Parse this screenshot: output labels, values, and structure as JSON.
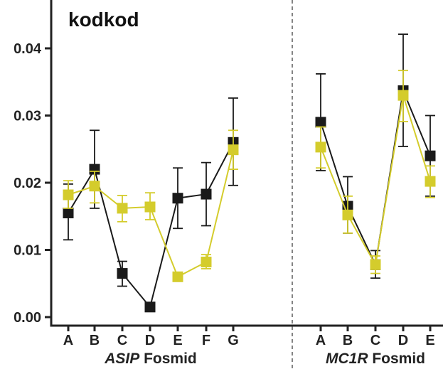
{
  "chart_data": {
    "type": "line",
    "title": "kodkod",
    "ylim": [
      0,
      0.045
    ],
    "yticks": [
      "0.00",
      "0.01",
      "0.02",
      "0.03",
      "0.04"
    ],
    "yticks_values": [
      0,
      0.01,
      0.02,
      0.03,
      0.04
    ],
    "grid": false,
    "legend": "none",
    "colors": {
      "series_dark": "#1a1a1a",
      "series_yellow": "#d4cc2c"
    },
    "panels": [
      {
        "gene": "ASIP",
        "suffix": " Fosmid",
        "categories": [
          "A",
          "B",
          "C",
          "D",
          "E",
          "F",
          "G"
        ],
        "series": [
          {
            "color_key": "series_dark",
            "values": [
              0.0155,
              0.022,
              0.0065,
              0.0015,
              0.0177,
              0.0183,
              0.026
            ],
            "err_low": [
              0.0115,
              0.0162,
              0.0046,
              0.0015,
              0.0132,
              0.0136,
              0.0196
            ],
            "err_high": [
              0.0198,
              0.0278,
              0.0083,
              0.0015,
              0.0222,
              0.023,
              0.0326
            ]
          },
          {
            "color_key": "series_yellow",
            "values": [
              0.0182,
              0.0195,
              0.0162,
              0.0164,
              0.006,
              0.0082,
              0.0249
            ],
            "err_low": [
              0.0162,
              0.017,
              0.0142,
              0.0145,
              0.0055,
              0.0072,
              0.022
            ],
            "err_high": [
              0.0203,
              0.0217,
              0.0181,
              0.0185,
              0.0066,
              0.0093,
              0.0278
            ]
          }
        ]
      },
      {
        "gene": "MC1R",
        "suffix": " Fosmid",
        "categories": [
          "A",
          "B",
          "C",
          "D",
          "E"
        ],
        "series": [
          {
            "color_key": "series_dark",
            "values": [
              0.029,
              0.0165,
              0.0078,
              0.0337,
              0.024
            ],
            "err_low": [
              0.0218,
              0.0125,
              0.0058,
              0.0254,
              0.018
            ],
            "err_high": [
              0.0362,
              0.0209,
              0.0099,
              0.0421,
              0.03
            ]
          },
          {
            "color_key": "series_yellow",
            "values": [
              0.0253,
              0.0152,
              0.0078,
              0.033,
              0.0202
            ],
            "err_low": [
              0.0222,
              0.0125,
              0.0065,
              0.0291,
              0.0178
            ],
            "err_high": [
              0.0283,
              0.018,
              0.0091,
              0.0367,
              0.0225
            ]
          }
        ]
      }
    ]
  }
}
